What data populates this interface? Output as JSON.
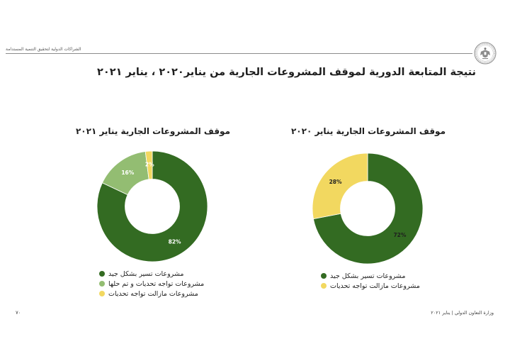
{
  "header": {
    "report_label": "الشراكات الدولية لتحقيق التنمية المستدامة",
    "emblem_icon": "egypt-eagle-emblem"
  },
  "title": "نتيجة المتابعة الدورية لموقف المشروعات الجارية من يناير٢٠٢٠ ، يناير ٢٠٢١",
  "chart_data": [
    {
      "type": "pie",
      "donut": true,
      "title": "موقف المشروعات الجارية يناير ٢٠٢٠",
      "categories": [
        "مشروعات تسير بشكل جيد",
        "مشروعات مازالت تواجه تحديات"
      ],
      "values": [
        72,
        28
      ],
      "labels": [
        "72%",
        "28%"
      ],
      "colors": [
        "#336b22",
        "#f2d860"
      ],
      "label_colors": [
        "#1f1f1f",
        "#1f1f1f"
      ],
      "legend_position": "bottom"
    },
    {
      "type": "pie",
      "donut": true,
      "title": "موقف المشروعات الجارية يناير ٢٠٢١",
      "categories": [
        "مشروعات تسير بشكل جيد",
        "مشروعات تواجه تحديات و تم حلها",
        "مشروعات مازالت تواجه تحديات"
      ],
      "values": [
        82,
        16,
        2
      ],
      "labels": [
        "82%",
        "16%",
        "2%"
      ],
      "colors": [
        "#336b22",
        "#93bd72",
        "#f2d860"
      ],
      "label_colors": [
        "#ffffff",
        "#ffffff",
        "#ffffff"
      ],
      "legend_position": "bottom"
    }
  ],
  "footer": {
    "page_number": "٧٠",
    "source": "وزارة التعاون الدولي | يناير ٢٠٢١"
  }
}
